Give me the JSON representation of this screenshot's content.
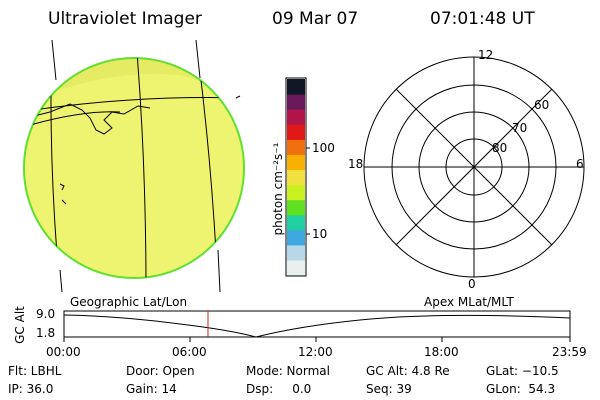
{
  "header": {
    "instrument": "Ultraviolet Imager",
    "date": "09 Mar 07",
    "time": "07:01:48 UT"
  },
  "colorbar": {
    "unit_label": "photon cm⁻²s⁻¹",
    "ticks": [
      "100",
      "10"
    ],
    "colors": [
      "#101828",
      "#6a1a5a",
      "#b0154a",
      "#e01818",
      "#f07010",
      "#f5b000",
      "#f0e040",
      "#c8f020",
      "#60e020",
      "#20d0a0",
      "#40a8e0",
      "#b8d8e8",
      "#e8f0f0"
    ]
  },
  "polar": {
    "mlt_labels": [
      "12",
      "18",
      "6",
      "0"
    ],
    "lat_labels": [
      "60",
      "70",
      "80"
    ]
  },
  "timeline": {
    "title_left": "Geographic Lat/Lon",
    "title_right": "Apex MLat/MLT",
    "axis_label": "GC Alt",
    "y_ticks": [
      "9.0",
      "1.8"
    ],
    "x_ticks": [
      "00:00",
      "06:00",
      "12:00",
      "18:00",
      "23:59"
    ],
    "current_marker_color": "#d02020"
  },
  "footer": {
    "filter": "Flt: LBHL",
    "door": "Door: Open",
    "mode": "Mode: Normal",
    "gc_alt": "GC Alt: 4.8 Re",
    "glat": "GLat: −10.5",
    "ip": "IP: 36.0",
    "gain": "Gain: 14",
    "dsp": "Dsp:     0.0",
    "seq": "Seq: 39",
    "glon": "GLon:  54.3"
  },
  "colors": {
    "earth_fill": "#eef470",
    "earth_edge": "#60e030"
  }
}
